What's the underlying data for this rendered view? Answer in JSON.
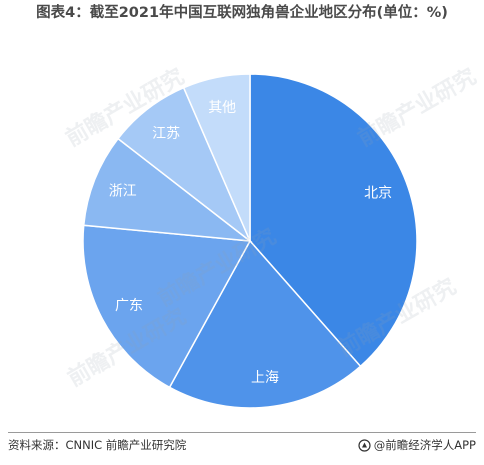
{
  "title": "图表4：截至2021年中国互联网独角兽企业地区分布(单位：%)",
  "chart_data": {
    "type": "pie",
    "title": "图表4：截至2021年中国互联网独角兽企业地区分布(单位：%)",
    "categories": [
      "北京",
      "上海",
      "广东",
      "浙江",
      "江苏",
      "其他"
    ],
    "values": [
      38.5,
      19.5,
      18.5,
      9,
      8,
      6.5
    ],
    "colors": [
      "#3b87e6",
      "#4f93ea",
      "#6ba4ee",
      "#8ab8f2",
      "#a5c9f6",
      "#c3dcfa"
    ],
    "data_labels": false
  },
  "footer": {
    "source": "资料来源：CNNIC 前瞻产业研究院",
    "brand": "@前瞻经济学人APP"
  },
  "watermark": "前瞻产业研究"
}
